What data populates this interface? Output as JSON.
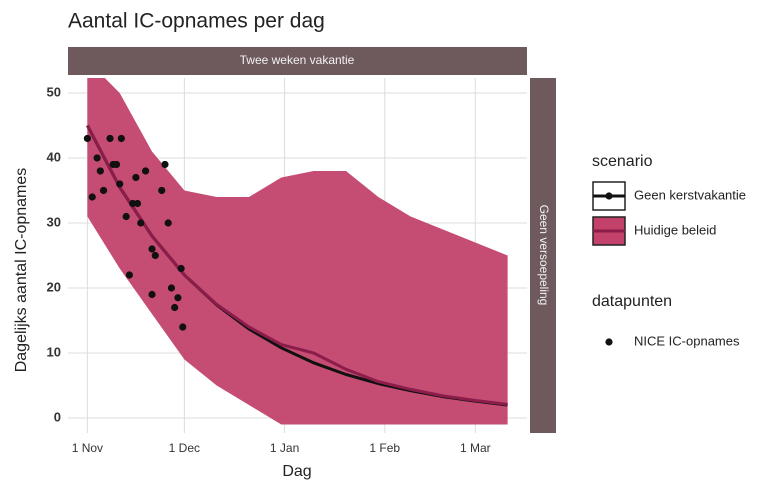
{
  "chart_data": {
    "type": "line",
    "title": "Aantal IC-opnames per dag",
    "x_label": "Dag",
    "y_label": "Dagelijks aantal IC-opnames",
    "facet_col": "Twee weken vakantie",
    "facet_row": "Geen versoepeling",
    "legend_title_lines": "scenario",
    "legend_title_points": "datapunten",
    "xlim": [
      -6,
      136
    ],
    "xticks": [
      {
        "value": 0,
        "label": "1 Nov"
      },
      {
        "value": 30,
        "label": "1 Dec"
      },
      {
        "value": 61,
        "label": "1 Jan"
      },
      {
        "value": 92,
        "label": "1 Feb"
      },
      {
        "value": 120,
        "label": "1 Mar"
      }
    ],
    "ylim": [
      -2.3,
      52.3
    ],
    "yticks": [
      0,
      10,
      20,
      30,
      40,
      50
    ],
    "grid": true,
    "series": [
      {
        "name": "Geen kerstvakantie",
        "kind": "line",
        "color": "#111111",
        "x": [
          0,
          10,
          20,
          30,
          40,
          50,
          60,
          70,
          80,
          90,
          100,
          110,
          120,
          130
        ],
        "values": [
          45,
          35.5,
          28,
          22,
          17.4,
          13.7,
          10.8,
          8.5,
          6.7,
          5.3,
          4.2,
          3.3,
          2.6,
          2.0
        ]
      },
      {
        "name": "Huidige beleid",
        "kind": "line",
        "color": "#8c1d4b",
        "band_color": "#c2426b",
        "x": [
          0,
          10,
          20,
          30,
          40,
          50,
          60,
          70,
          80,
          90,
          100,
          110,
          120,
          130
        ],
        "values": [
          45,
          35.5,
          28,
          22,
          17.5,
          14,
          11.3,
          10,
          7.5,
          5.6,
          4.4,
          3.4,
          2.7,
          2.1
        ],
        "lower": [
          31,
          23,
          16,
          9,
          5,
          2,
          -1,
          -1,
          -1,
          -1,
          -1,
          -1,
          -1,
          -1
        ],
        "upper": [
          55,
          50,
          41,
          35,
          34,
          34,
          37,
          38,
          38,
          34,
          31,
          29,
          27,
          25
        ]
      },
      {
        "name": "NICE IC-opnames",
        "kind": "points",
        "color": "#111111",
        "x": [
          0,
          1.5,
          3,
          4,
          5,
          7,
          8,
          9,
          10.5,
          10,
          12,
          13,
          14,
          15,
          15.5,
          16.5,
          18,
          20,
          20,
          21,
          23,
          24,
          25,
          26,
          27,
          28,
          29,
          29.5
        ],
        "values": [
          43,
          34,
          40,
          38,
          35,
          43,
          39,
          39,
          43,
          36,
          31,
          22,
          33,
          37,
          33,
          30,
          38,
          19,
          26,
          25,
          35,
          39,
          30,
          20,
          17,
          18.5,
          23,
          14
        ]
      }
    ]
  }
}
